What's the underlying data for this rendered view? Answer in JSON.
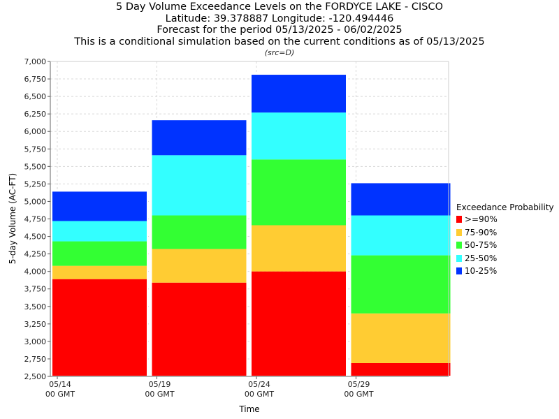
{
  "chart_data": {
    "type": "bar",
    "stacked": true,
    "title_lines": [
      "5 Day Volume Exceedance Levels on the FORDYCE LAKE - CISCO",
      "Latitude: 39.378887 Longitude: -120.494446",
      "Forecast for the period 05/13/2025 - 06/02/2025",
      "This is a conditional simulation based on the current conditions as of 05/13/2025"
    ],
    "subtitle": "(src=D)",
    "xlabel": "Time",
    "ylabel": "5-day Volume (AC-FT)",
    "ylim": [
      2500,
      7000
    ],
    "ytick_step": 250,
    "x_ticks": [
      {
        "line1": "05/14",
        "line2": "00 GMT"
      },
      {
        "line1": "05/19",
        "line2": "00 GMT"
      },
      {
        "line1": "05/24",
        "line2": "00 GMT"
      },
      {
        "line1": "05/29",
        "line2": "00 GMT"
      }
    ],
    "categories": [
      "05/14",
      "05/19",
      "05/24",
      "05/29"
    ],
    "series": [
      {
        "name": ">=90%",
        "color": "#ff0000",
        "tops": [
          3890,
          3840,
          4000,
          2690
        ]
      },
      {
        "name": "75-90%",
        "color": "#ffcc33",
        "tops": [
          4080,
          4320,
          4660,
          3400
        ]
      },
      {
        "name": "50-75%",
        "color": "#33ff33",
        "tops": [
          4430,
          4800,
          5600,
          4230
        ]
      },
      {
        "name": "25-50%",
        "color": "#33ffff",
        "tops": [
          4720,
          5660,
          6270,
          4800
        ]
      },
      {
        "name": "10-25%",
        "color": "#0033ff",
        "tops": [
          5150,
          6170,
          6820,
          5270
        ]
      }
    ],
    "legend_title": "Exceedance Probability",
    "legend_placement": "right",
    "grid": true
  }
}
